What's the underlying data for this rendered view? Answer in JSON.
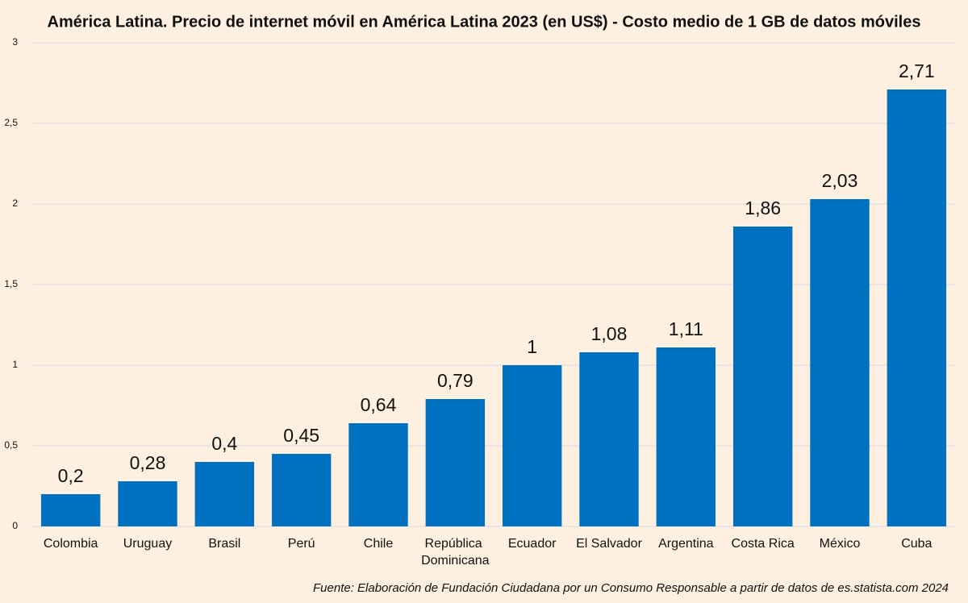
{
  "chart_data": {
    "type": "bar",
    "title": "América Latina. Precio de internet móvil en América Latina 2023 (en US$) - Costo medio de 1 GB de datos móviles",
    "source": "Fuente: Elaboración de Fundación Ciudadana por un Consumo Responsable a partir de datos de es.statista.com 2024",
    "categories": [
      "Colombia",
      "Uruguay",
      "Brasil",
      "Perú",
      "Chile",
      "República Dominicana",
      "Ecuador",
      "El Salvador",
      "Argentina",
      "Costa Rica",
      "México",
      "Cuba"
    ],
    "values": [
      0.2,
      0.28,
      0.4,
      0.45,
      0.64,
      0.79,
      1,
      1.08,
      1.11,
      1.86,
      2.03,
      2.71
    ],
    "value_labels": [
      "0,2",
      "0,28",
      "0,4",
      "0,45",
      "0,64",
      "0,79",
      "1",
      "1,08",
      "1,11",
      "1,86",
      "2,03",
      "2,71"
    ],
    "color": "#0070c0",
    "ylim": [
      0,
      3
    ],
    "yticks": [
      0,
      {
        "value": 0.5,
        "label": "0,5"
      },
      1,
      {
        "value": 1.5,
        "label": "1,5"
      },
      2,
      {
        "value": 2.5,
        "label": "2,5"
      },
      3
    ],
    "grid": true
  }
}
